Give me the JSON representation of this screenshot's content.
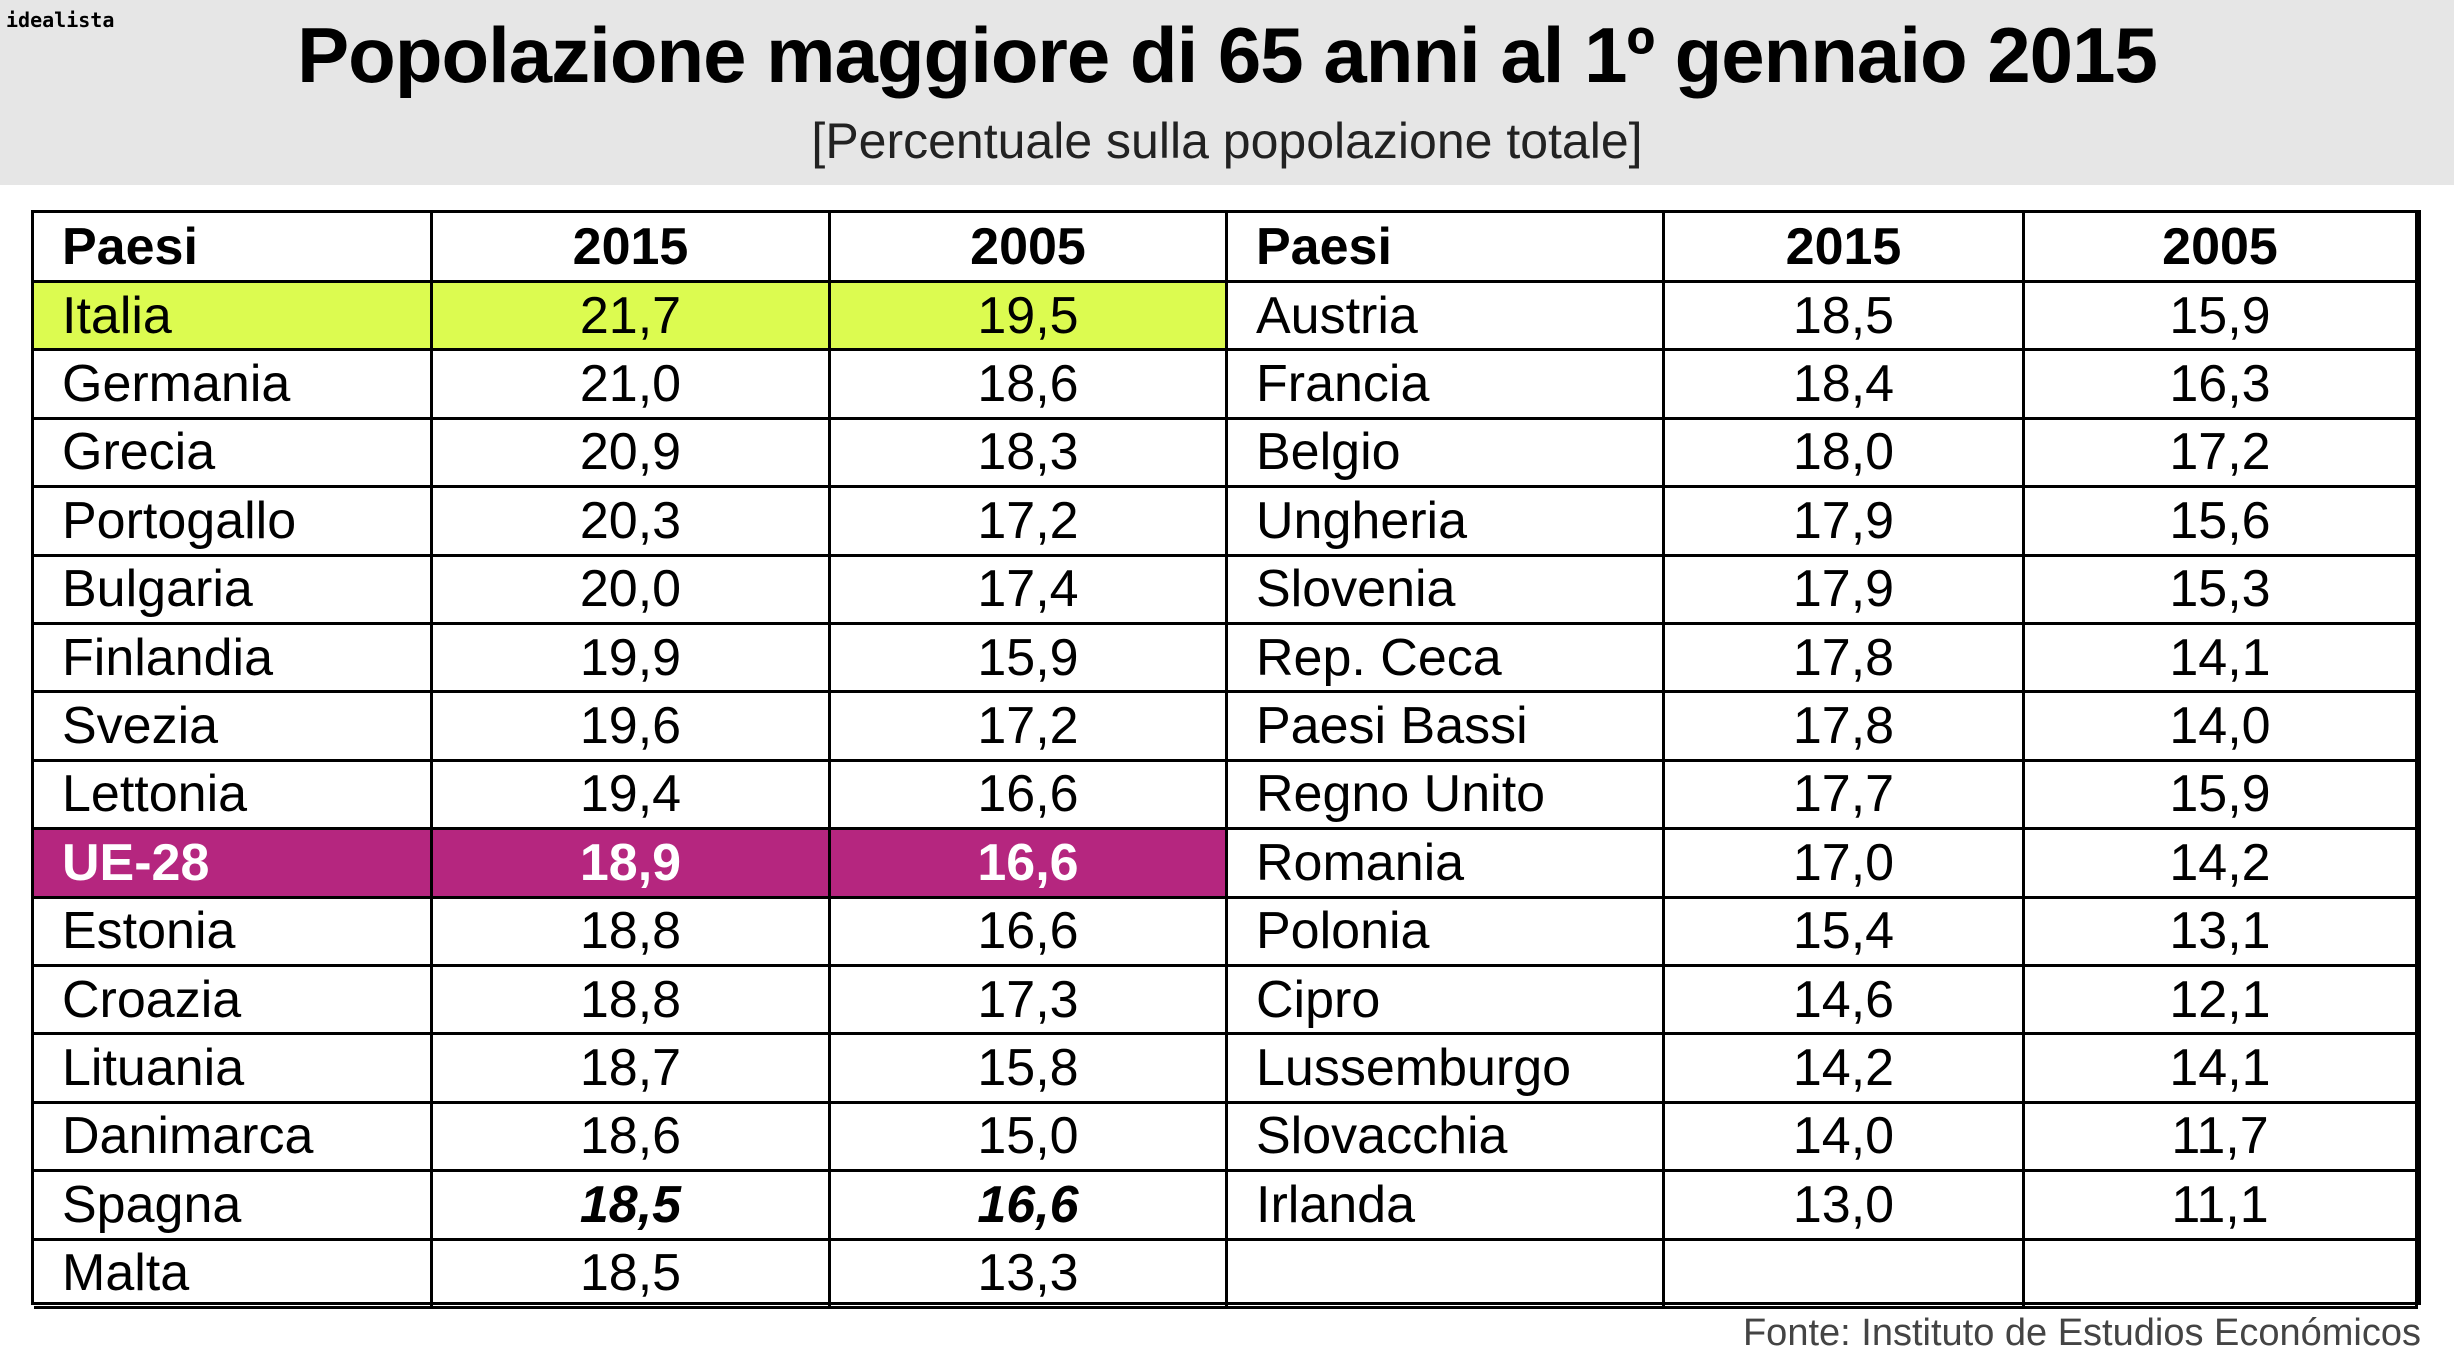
{
  "header": {
    "brand": "idealista",
    "title": "Popolazione maggiore di 65 anni al 1º gennaio 2015",
    "subtitle": "[Percentuale sulla popolazione totale]"
  },
  "table": {
    "headers": [
      "Paesi",
      "2015",
      "2005",
      "Paesi",
      "2015",
      "2005"
    ],
    "left_rows": [
      [
        "Italia",
        "21,7",
        "19,5"
      ],
      [
        "Germania",
        "21,0",
        "18,6"
      ],
      [
        "Grecia",
        "20,9",
        "18,3"
      ],
      [
        "Portogallo",
        "20,3",
        "17,2"
      ],
      [
        "Bulgaria",
        "20,0",
        "17,4"
      ],
      [
        "Finlandia",
        "19,9",
        "15,9"
      ],
      [
        "Svezia",
        "19,6",
        "17,2"
      ],
      [
        "Lettonia",
        "19,4",
        "16,6"
      ],
      [
        "UE-28",
        "18,9",
        "16,6"
      ],
      [
        "Estonia",
        "18,8",
        "16,6"
      ],
      [
        "Croazia",
        "18,8",
        "17,3"
      ],
      [
        "Lituania",
        "18,7",
        "15,8"
      ],
      [
        "Danimarca",
        "18,6",
        "15,0"
      ],
      [
        "Spagna",
        "18,5",
        "16,6"
      ],
      [
        "Malta",
        "18,5",
        "13,3"
      ]
    ],
    "right_rows": [
      [
        "Austria",
        "18,5",
        "15,9"
      ],
      [
        "Francia",
        "18,4",
        "16,3"
      ],
      [
        "Belgio",
        "18,0",
        "17,2"
      ],
      [
        "Ungheria",
        "17,9",
        "15,6"
      ],
      [
        "Slovenia",
        "17,9",
        "15,3"
      ],
      [
        "Rep. Ceca",
        "17,8",
        "14,1"
      ],
      [
        "Paesi Bassi",
        "17,8",
        "14,0"
      ],
      [
        "Regno Unito",
        "17,7",
        "15,9"
      ],
      [
        "Romania",
        "17,0",
        "14,2"
      ],
      [
        "Polonia",
        "15,4",
        "13,1"
      ],
      [
        "Cipro",
        "14,6",
        "12,1"
      ],
      [
        "Lussemburgo",
        "14,2",
        "14,1"
      ],
      [
        "Slovacchia",
        "14,0",
        "11,7"
      ],
      [
        "Irlanda",
        "13,0",
        "11,1"
      ]
    ]
  },
  "footer": {
    "source": "Fonte: Instituto de Estudios Económicos"
  }
}
